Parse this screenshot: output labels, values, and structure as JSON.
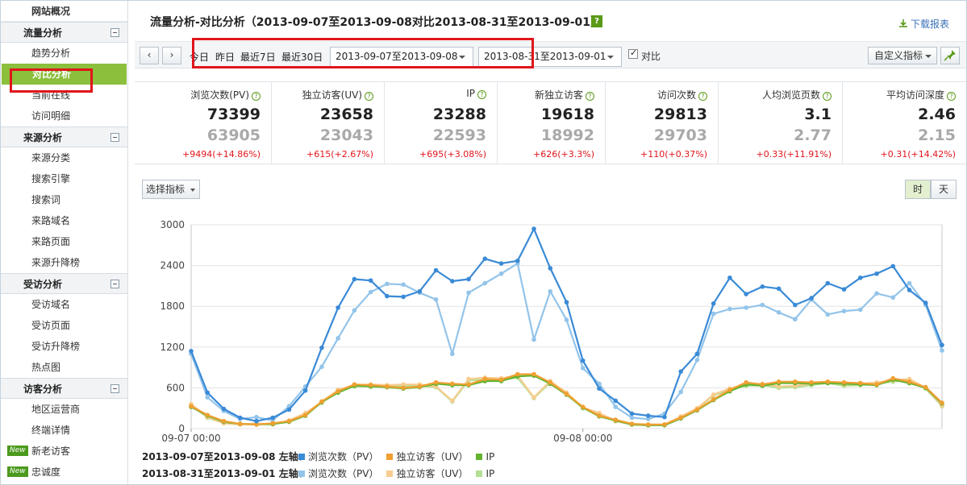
{
  "sidebar": {
    "overview": "网站概况",
    "groups": [
      {
        "title": "流量分析",
        "items": [
          "趋势分析",
          "对比分析",
          "当前在线",
          "访问明细"
        ]
      },
      {
        "title": "来源分析",
        "items": [
          "来源分类",
          "搜索引擎",
          "搜索词",
          "来路域名",
          "来路页面",
          "来源升降榜"
        ]
      },
      {
        "title": "受访分析",
        "items": [
          "受访域名",
          "受访页面",
          "受访升降榜",
          "热点图"
        ]
      },
      {
        "title": "访客分析",
        "items": [
          "地区运营商",
          "终端详情",
          "新老访客",
          "忠诚度"
        ]
      }
    ],
    "active_item": "对比分析",
    "new_badge": "New"
  },
  "header": {
    "title": "流量分析-对比分析（2013-09-07至2013-09-08对比2013-08-31至2013-09-01）",
    "help": "?",
    "download": "下载报表"
  },
  "toolbar": {
    "prev": "‹",
    "next": "›",
    "quick_ranges": [
      "今日",
      "昨日",
      "最近7日",
      "最近30日"
    ],
    "range1": "2013-09-07至2013-09-08",
    "range2": "2013-08-31至2013-09-01",
    "compare_label": "对比",
    "compare_checked": true,
    "custom_metrics": "自定义指标"
  },
  "metrics": [
    {
      "label": "浏览次数(PV)",
      "current": "73399",
      "previous": "63905",
      "diff": "+9494(+14.86%)"
    },
    {
      "label": "独立访客(UV)",
      "current": "23658",
      "previous": "23043",
      "diff": "+615(+2.67%)"
    },
    {
      "label": "IP",
      "current": "23288",
      "previous": "22593",
      "diff": "+695(+3.08%)"
    },
    {
      "label": "新独立访客",
      "current": "19618",
      "previous": "18992",
      "diff": "+626(+3.3%)"
    },
    {
      "label": "访问次数",
      "current": "29813",
      "previous": "29703",
      "diff": "+110(+0.37%)"
    },
    {
      "label": "人均浏览页数",
      "current": "3.1",
      "previous": "2.77",
      "diff": "+0.33(+11.91%)"
    },
    {
      "label": "平均访问深度",
      "current": "2.46",
      "previous": "2.15",
      "diff": "+0.31(+14.42%)"
    }
  ],
  "chart_controls": {
    "select_metric": "选择指标",
    "granularity": [
      "时",
      "天"
    ],
    "active_granularity": "时"
  },
  "legend": [
    {
      "prefix": "2013-09-07至2013-09-08 左轴：",
      "items": [
        {
          "name": "浏览次数（PV）",
          "color": "#3a8ad6"
        },
        {
          "name": "独立访客（UV）",
          "color": "#f0a033"
        },
        {
          "name": "IP",
          "color": "#62b32e"
        }
      ]
    },
    {
      "prefix": "2013-08-31至2013-09-01 左轴：",
      "items": [
        {
          "name": "浏览次数（PV）",
          "color": "#93c4ea"
        },
        {
          "name": "独立访客（UV）",
          "color": "#f8cc90"
        },
        {
          "name": "IP",
          "color": "#b3e092"
        }
      ]
    }
  ],
  "chart_data": {
    "type": "line",
    "x_labels": [
      "09-07 00:00",
      "09-08 00:00"
    ],
    "x_label_indices": [
      0,
      24
    ],
    "ylim": [
      0,
      3000
    ],
    "yticks": [
      0,
      600,
      1200,
      1800,
      2400,
      3000
    ],
    "grid": true,
    "series": [
      {
        "name": "浏览次数（PV）",
        "period": "2013-09-07至2013-09-08",
        "color": "#3a8ad6",
        "values": [
          1140,
          530,
          290,
          160,
          110,
          160,
          280,
          560,
          1190,
          1780,
          2200,
          2180,
          1950,
          1940,
          2020,
          2330,
          2170,
          2200,
          2500,
          2430,
          2470,
          2940,
          2360,
          1860,
          1000,
          590,
          410,
          220,
          190,
          170,
          840,
          1100,
          1840,
          2220,
          1980,
          2090,
          2060,
          1820,
          1920,
          2140,
          2050,
          2220,
          2280,
          2390,
          2040,
          1850,
          1230
        ]
      },
      {
        "name": "独立访客（UV）",
        "period": "2013-09-07至2013-09-08",
        "color": "#f0a033",
        "values": [
          330,
          200,
          110,
          70,
          60,
          80,
          110,
          200,
          400,
          550,
          650,
          640,
          620,
          600,
          620,
          680,
          660,
          650,
          730,
          720,
          800,
          800,
          680,
          510,
          320,
          190,
          130,
          70,
          60,
          60,
          160,
          280,
          430,
          570,
          680,
          650,
          690,
          690,
          680,
          690,
          680,
          670,
          650,
          740,
          690,
          610,
          380
        ]
      },
      {
        "name": "IP",
        "period": "2013-09-07至2013-09-08",
        "color": "#62b32e",
        "values": [
          320,
          190,
          100,
          70,
          60,
          70,
          100,
          190,
          390,
          530,
          630,
          620,
          610,
          590,
          610,
          660,
          640,
          640,
          700,
          700,
          770,
          780,
          660,
          500,
          310,
          180,
          120,
          60,
          50,
          50,
          150,
          270,
          420,
          550,
          650,
          630,
          670,
          670,
          660,
          670,
          660,
          650,
          640,
          720,
          670,
          600,
          370
        ]
      },
      {
        "name": "浏览次数（PV）",
        "period": "2013-08-31至2013-09-01",
        "color": "#93c4ea",
        "values": [
          1100,
          460,
          260,
          140,
          170,
          120,
          330,
          620,
          910,
          1330,
          1740,
          2010,
          2130,
          2120,
          2000,
          1900,
          1100,
          2000,
          2140,
          2280,
          2430,
          1310,
          2020,
          1600,
          890,
          660,
          320,
          160,
          140,
          220,
          540,
          1010,
          1690,
          1760,
          1780,
          1820,
          1710,
          1610,
          1900,
          1680,
          1730,
          1750,
          1990,
          1930,
          2140,
          1820,
          1150
        ]
      },
      {
        "name": "独立访客（UV）",
        "period": "2013-08-31至2013-09-01",
        "color": "#f8cc90",
        "values": [
          360,
          170,
          80,
          60,
          80,
          60,
          120,
          230,
          390,
          570,
          640,
          650,
          640,
          650,
          650,
          620,
          410,
          730,
          750,
          740,
          780,
          460,
          700,
          530,
          310,
          230,
          110,
          60,
          50,
          60,
          180,
          300,
          500,
          590,
          650,
          660,
          620,
          630,
          660,
          690,
          650,
          660,
          680,
          710,
          730,
          600,
          340
        ]
      },
      {
        "name": "IP",
        "period": "2013-08-31至2013-09-01",
        "color": "#b3e092",
        "values": [
          350,
          160,
          80,
          60,
          70,
          60,
          110,
          220,
          380,
          560,
          620,
          630,
          620,
          630,
          630,
          610,
          400,
          710,
          720,
          720,
          750,
          450,
          680,
          520,
          300,
          220,
          110,
          60,
          50,
          60,
          170,
          290,
          490,
          570,
          630,
          640,
          600,
          610,
          640,
          670,
          630,
          640,
          660,
          690,
          710,
          590,
          330
        ]
      }
    ]
  }
}
